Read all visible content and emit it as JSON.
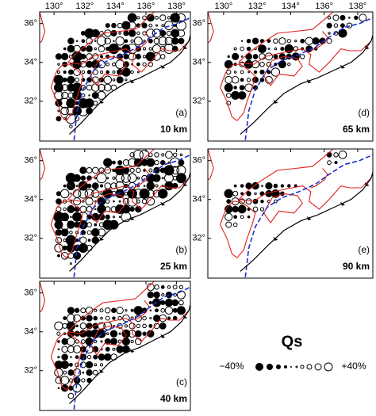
{
  "panels": [
    {
      "label": "(a)",
      "depth": "10 km"
    },
    {
      "label": "(b)",
      "depth": "25 km"
    },
    {
      "label": "(c)",
      "depth": "40 km"
    },
    {
      "label": "(d)",
      "depth": "65 km"
    },
    {
      "label": "(e)",
      "depth": "90 km"
    }
  ],
  "lon_ticks": [
    "130°",
    "132°",
    "134°",
    "136°",
    "138°"
  ],
  "lat_ticks": [
    "32°",
    "34°",
    "36°"
  ],
  "legend": {
    "title": "Qs",
    "min_label": "−40%",
    "max_label": "+40%"
  }
}
